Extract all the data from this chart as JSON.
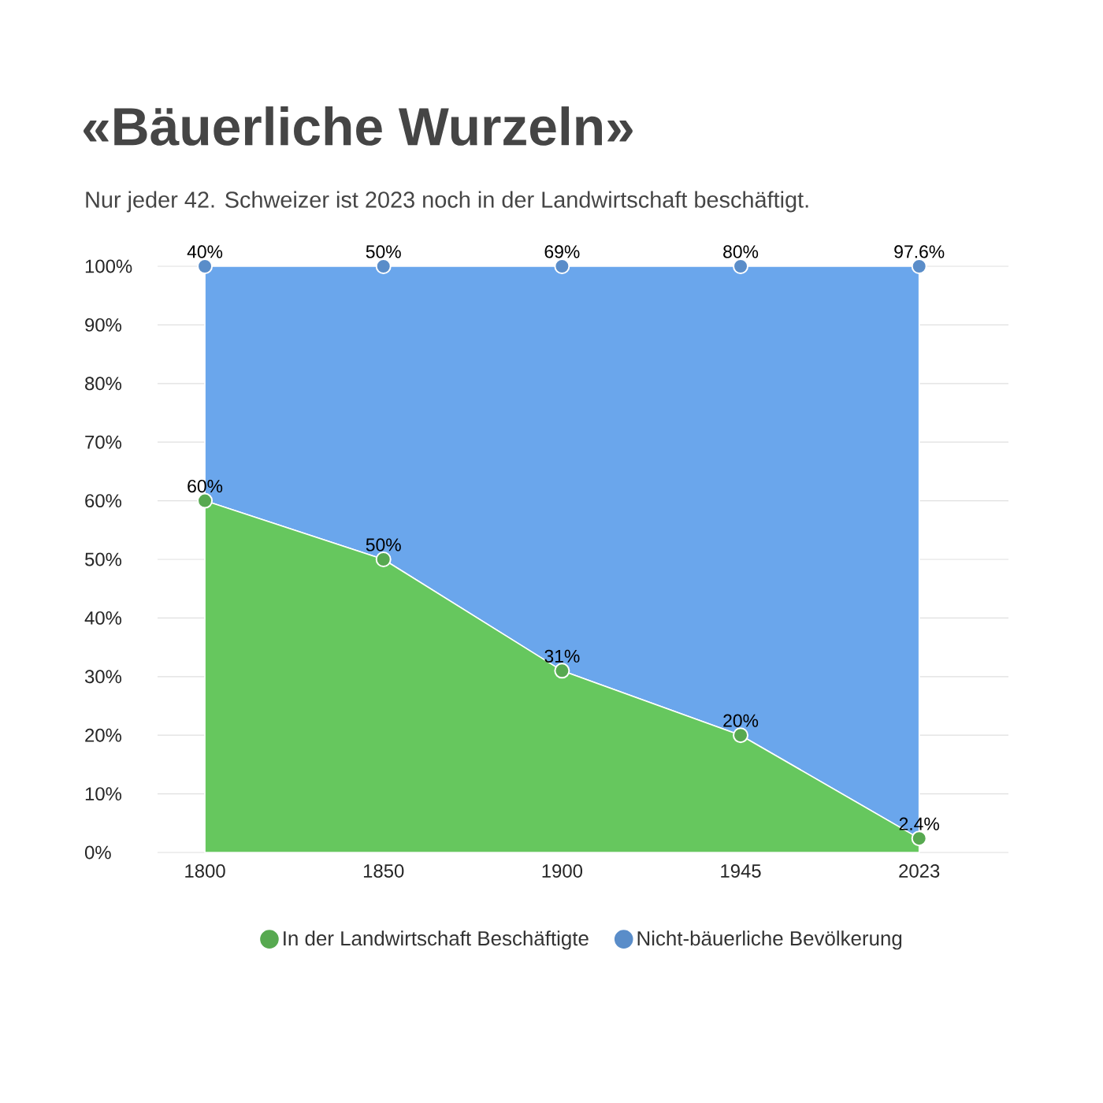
{
  "chart_data": {
    "type": "area",
    "stacked": true,
    "title": "«Bäuerliche Wurzeln»",
    "subtitle": "Nur jeder 42. Schweizer ist 2023 noch in der Landwirtschaft beschäftigt.",
    "categories": [
      "1800",
      "1850",
      "1900",
      "1945",
      "2023"
    ],
    "series": [
      {
        "name": "In der Landwirtschaft Beschäftigte",
        "color": "#66c75e",
        "values": [
          60,
          50,
          31,
          20,
          2.4
        ],
        "value_labels": [
          "60%",
          "50%",
          "31%",
          "20%",
          "2.4%"
        ]
      },
      {
        "name": "Nicht-bäuerliche Bevölkerung",
        "color": "#6aa6ec",
        "values": [
          40,
          50,
          69,
          80,
          97.6
        ],
        "value_labels": [
          "40%",
          "50%",
          "69%",
          "80%",
          "97.6%"
        ]
      }
    ],
    "ylim": [
      0,
      100
    ],
    "yticks": [
      {
        "value": 0,
        "label": "0%"
      },
      {
        "value": 10,
        "label": "10%"
      },
      {
        "value": 20,
        "label": "20%"
      },
      {
        "value": 30,
        "label": "30%"
      },
      {
        "value": 40,
        "label": "40%"
      },
      {
        "value": 50,
        "label": "50%"
      },
      {
        "value": 60,
        "label": "60%"
      },
      {
        "value": 70,
        "label": "70%"
      },
      {
        "value": 80,
        "label": "80%"
      },
      {
        "value": 90,
        "label": "90%"
      },
      {
        "value": 100,
        "label": "100%"
      }
    ],
    "grid": "y",
    "legend": "bottom",
    "marker": "circle"
  }
}
